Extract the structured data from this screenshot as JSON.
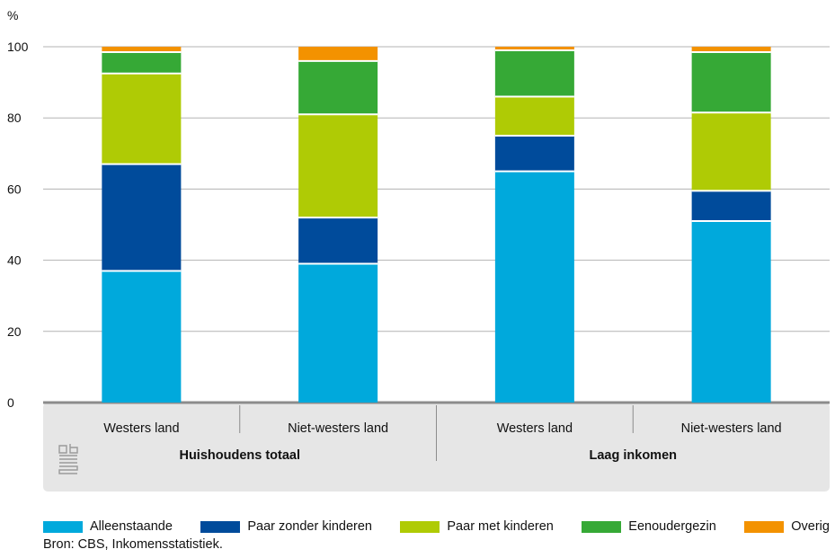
{
  "chart_data": {
    "type": "bar",
    "stacked": true,
    "ylabel": "%",
    "ylim": [
      0,
      100
    ],
    "yticks": [
      0,
      20,
      40,
      60,
      80,
      100
    ],
    "grid": true,
    "legend_position": "bottom",
    "categories": [
      "Westers land",
      "Niet-westers land",
      "Westers land",
      "Niet-westers land"
    ],
    "groups": [
      {
        "label": "Huishoudens totaal",
        "categories": [
          0,
          1
        ]
      },
      {
        "label": "Laag inkomen",
        "categories": [
          2,
          3
        ]
      }
    ],
    "series": [
      {
        "name": "Alleenstaande",
        "color": "#00a9dc",
        "values": [
          37,
          39,
          65,
          51
        ]
      },
      {
        "name": "Paar zonder kinderen",
        "color": "#004b9b",
        "values": [
          30,
          13,
          10,
          8.5
        ]
      },
      {
        "name": "Paar met kinderen",
        "color": "#afcb05",
        "values": [
          25.5,
          29,
          11,
          22
        ]
      },
      {
        "name": "Eenoudergezin",
        "color": "#36a936",
        "values": [
          6,
          15,
          13,
          17
        ]
      },
      {
        "name": "Overig",
        "color": "#f39200",
        "values": [
          1.5,
          4,
          1,
          1.5
        ]
      }
    ]
  },
  "source": "Bron: CBS, Inkomensstatistiek."
}
